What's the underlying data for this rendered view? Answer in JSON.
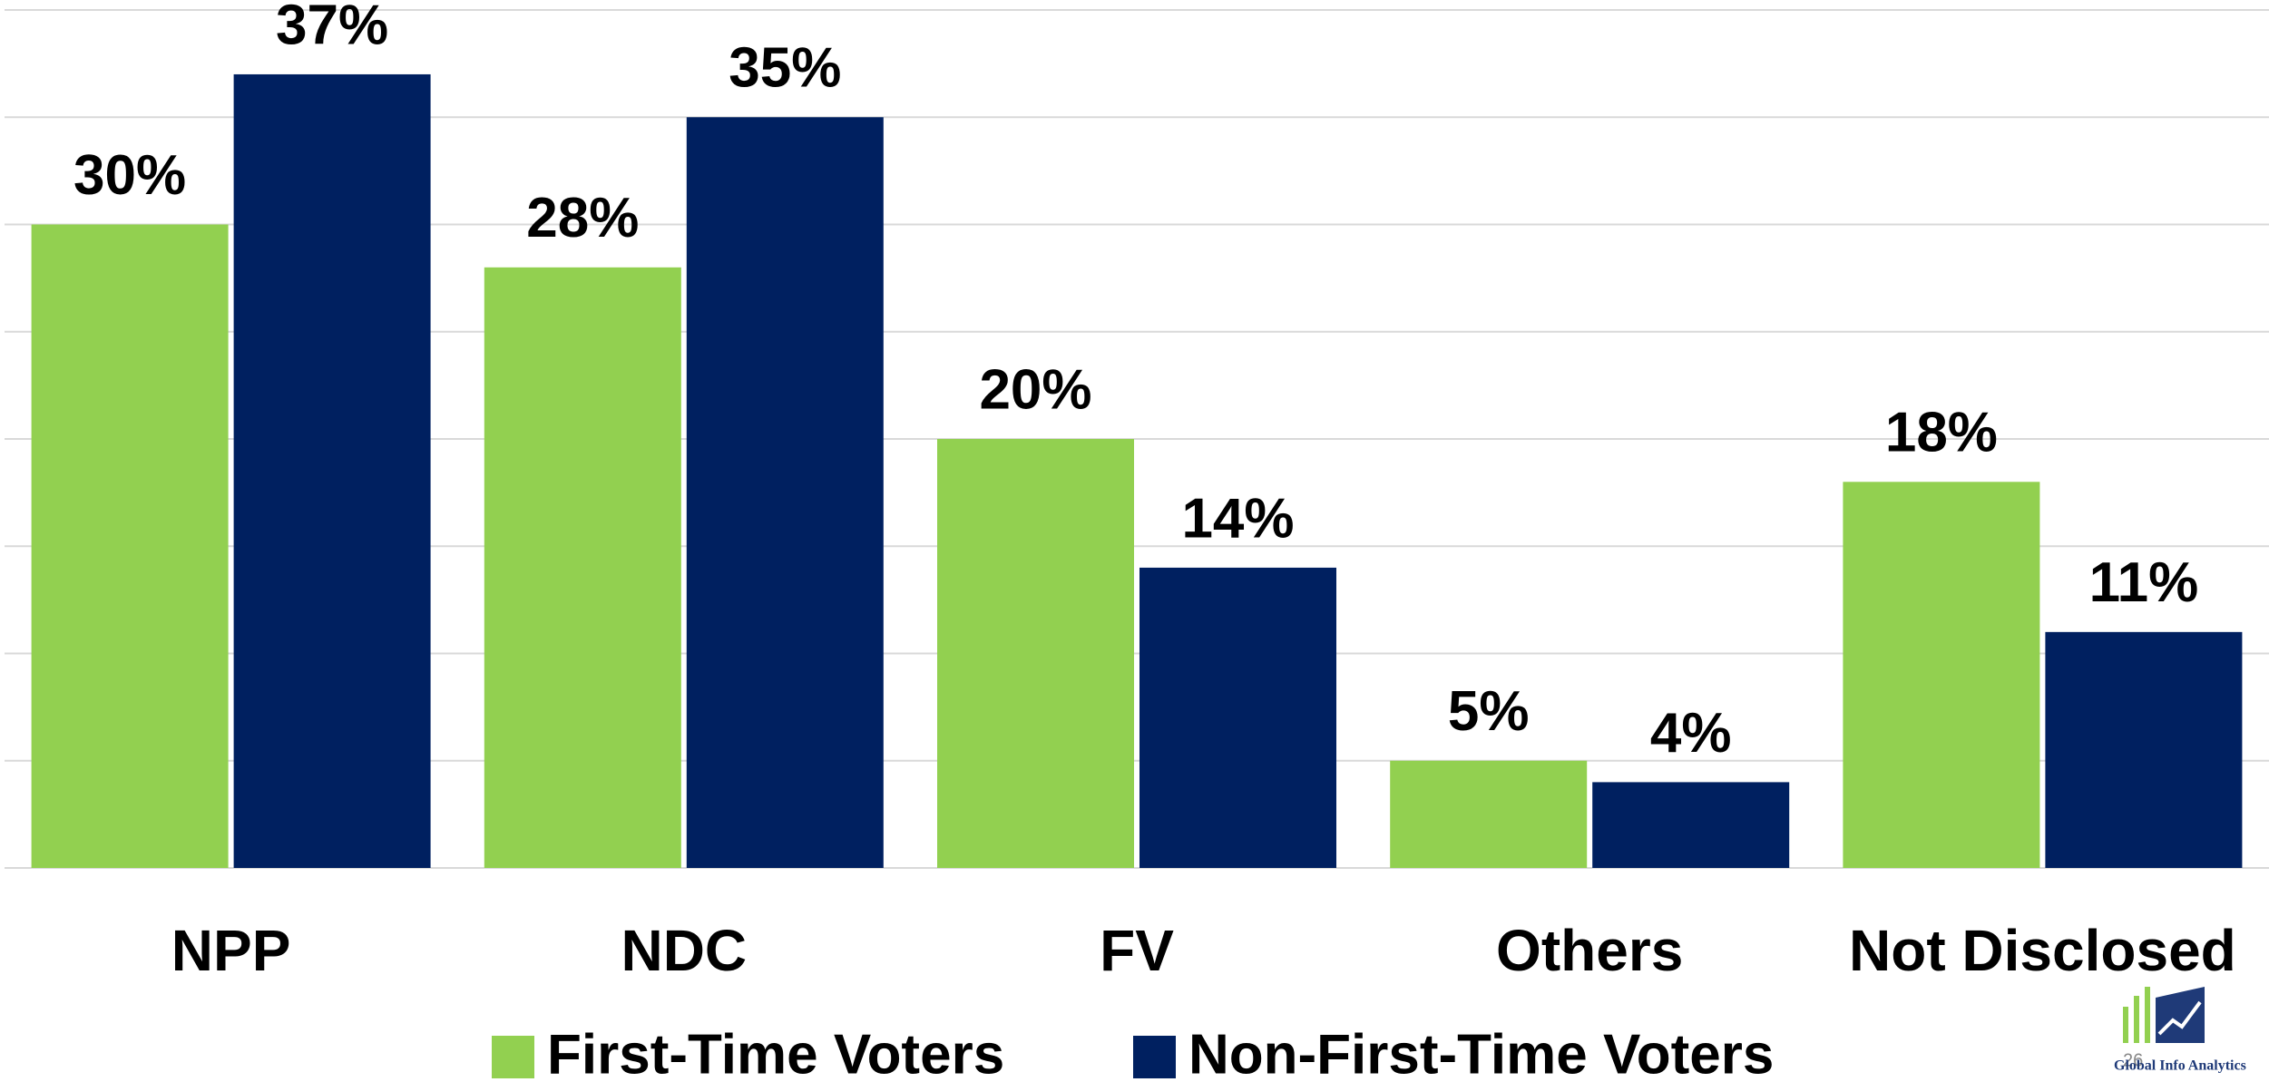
{
  "chart_data": {
    "type": "bar",
    "categories": [
      "NPP",
      "NDC",
      "FV",
      "Others",
      "Not Disclosed"
    ],
    "series": [
      {
        "name": "First-Time Voters",
        "color": "#92d050",
        "values": [
          30,
          28,
          20,
          5,
          18
        ],
        "value_labels": [
          "30%",
          "28%",
          "20%",
          "5%",
          "18%"
        ]
      },
      {
        "name": "Non-First-Time Voters",
        "color": "#002060",
        "values": [
          37,
          35,
          14,
          4,
          11
        ],
        "value_labels": [
          "37%",
          "35%",
          "14%",
          "4%",
          "11%"
        ]
      }
    ],
    "ylim": [
      0,
      40
    ],
    "yticks": [
      0,
      5,
      10,
      15,
      20,
      25,
      30,
      35,
      40
    ],
    "grid": true,
    "legend": "bottom",
    "page_number": "26",
    "logo_text": "Global Info Analytics"
  }
}
